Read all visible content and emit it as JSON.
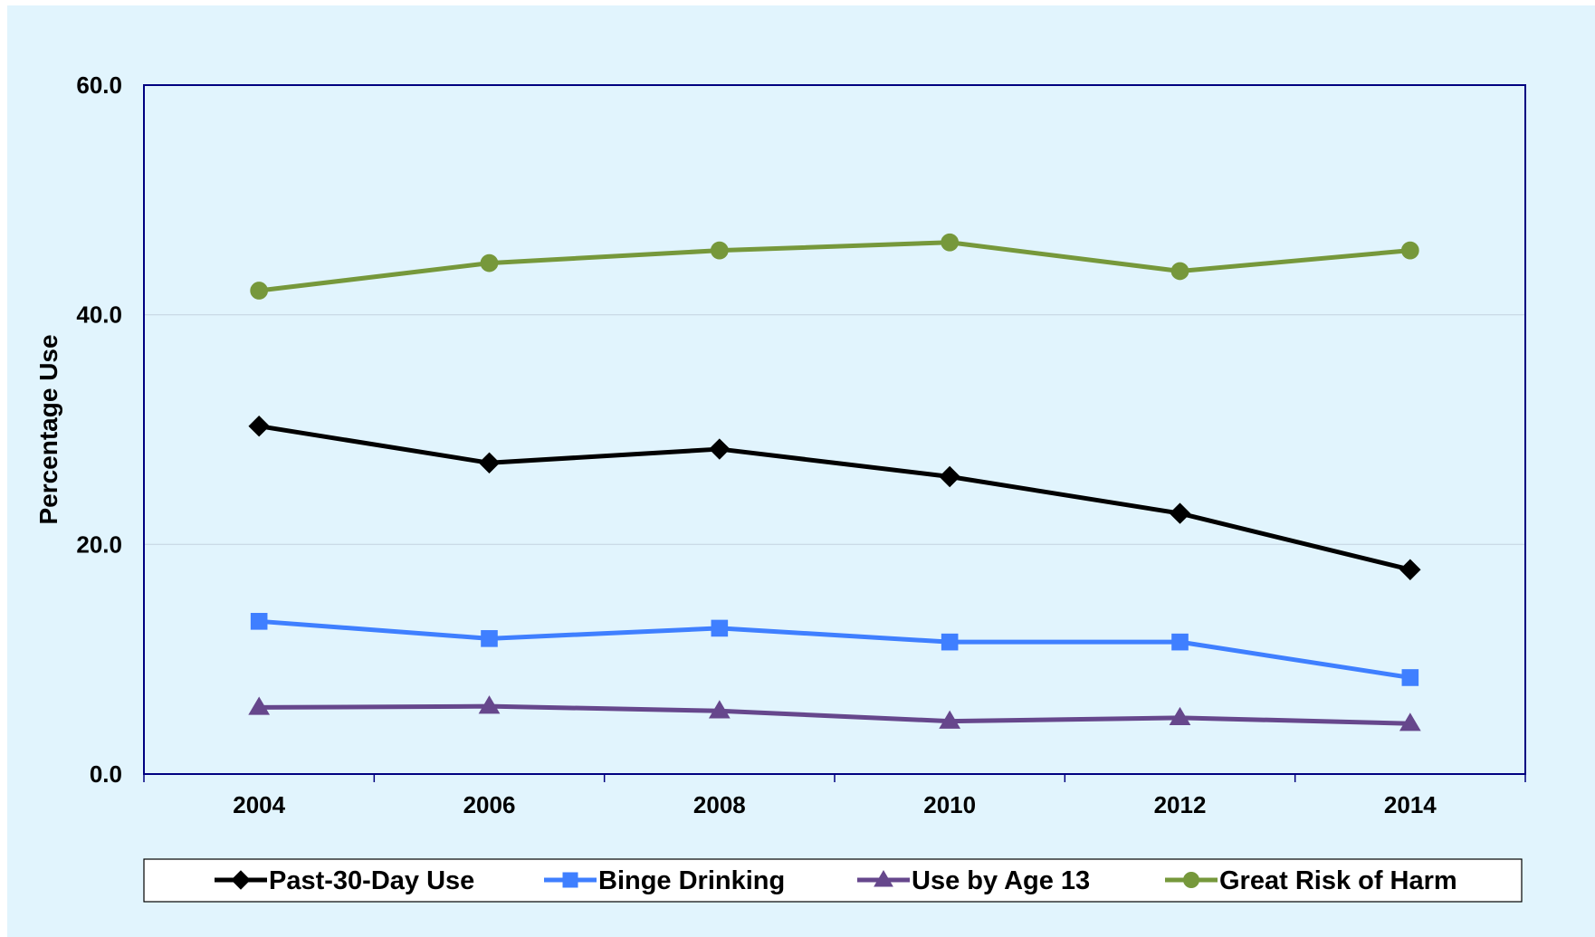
{
  "chart_data": {
    "type": "line",
    "ylabel": "Percentage Use",
    "xlabel": "",
    "title": "",
    "categories": [
      "2004",
      "2006",
      "2008",
      "2010",
      "2012",
      "2014"
    ],
    "yticks": [
      "0.0",
      "20.0",
      "40.0",
      "60.0"
    ],
    "ylim": [
      0,
      60
    ],
    "grid": true,
    "legend_position": "bottom",
    "series": [
      {
        "name": "Past-30-Day Use",
        "color": "#000000",
        "marker": "diamond",
        "values": [
          30.3,
          27.1,
          28.3,
          25.9,
          22.7,
          17.8
        ]
      },
      {
        "name": "Binge Drinking",
        "color": "#3f7fff",
        "marker": "square",
        "values": [
          13.3,
          11.8,
          12.7,
          11.5,
          11.5,
          8.4
        ]
      },
      {
        "name": "Use by Age 13",
        "color": "#66478c",
        "marker": "triangle",
        "values": [
          5.8,
          5.9,
          5.5,
          4.6,
          4.9,
          4.4
        ]
      },
      {
        "name": "Great Risk of Harm",
        "color": "#76983b",
        "marker": "circle",
        "values": [
          42.1,
          44.5,
          45.6,
          46.3,
          43.8,
          45.6
        ]
      }
    ]
  }
}
